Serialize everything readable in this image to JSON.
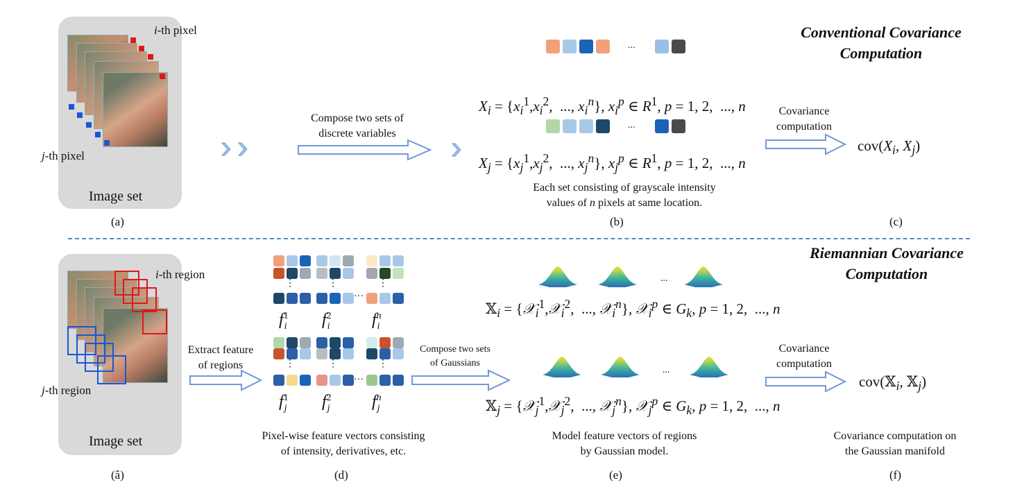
{
  "colors": {
    "panel": "#d9d9d9",
    "arrow_stroke": "#6f98d8",
    "divider": "#5b86c9"
  },
  "top": {
    "heading": [
      "Conventional Covariance",
      "Computation"
    ],
    "i_pixel": "i-th pixel",
    "j_pixel": "j-th pixel",
    "image_set": "Image set",
    "label_a": "(a)",
    "arrow_text": [
      "Compose two sets of",
      "discrete variables"
    ],
    "formula_i": "X_i = {x_i^1, x_i^2, ..., x_i^n}, x_i^p ∈ R^1, p = 1, 2, ..., n",
    "formula_j": "X_j = {x_j^1, x_j^2, ..., x_j^n}, x_j^p ∈ R^1, p = 1, 2, ..., n",
    "caption_b": [
      "Each set consisting of grayscale intensity",
      "values of n pixels at same location."
    ],
    "label_b": "(b)",
    "cov_text": [
      "Covariance",
      "computation"
    ],
    "cov_result": "cov(X_i, X_j)",
    "label_c": "(c)",
    "ellipsis": "..."
  },
  "bottom": {
    "heading": [
      "Riemannian Covariance",
      "Computation"
    ],
    "i_region": "i-th region",
    "j_region": "j-th region",
    "image_set": "Image set",
    "label_a2": "(â)",
    "extract_text": [
      "Extract feature",
      "of regions"
    ],
    "compose_text": [
      "Compose two sets",
      "of Gaussians"
    ],
    "formula_i": "𝕏_i = {𝒳_i^1, 𝒳_i^2, ..., 𝒳_i^n}, 𝒳_i^p ∈ G_k, p = 1, 2, ..., n",
    "formula_j": "𝕏_j = {𝒳_j^1, 𝒳_j^2, ..., 𝒳_j^n}, 𝒳_j^p ∈ G_k, p = 1, 2, ..., n",
    "caption_d": [
      "Pixel-wise feature vectors consisting",
      "of intensity, derivatives, etc."
    ],
    "label_d": "(d)",
    "caption_e": [
      "Model feature vectors of regions",
      "by Gaussian model."
    ],
    "label_e": "(e)",
    "cov_text": [
      "Covariance",
      "computation"
    ],
    "cov_result": "cov(𝕏_i, 𝕏_j)",
    "caption_f": [
      "Covariance computation on",
      "the Gaussian manifold"
    ],
    "label_f": "(f)",
    "ellipsis": "..."
  }
}
